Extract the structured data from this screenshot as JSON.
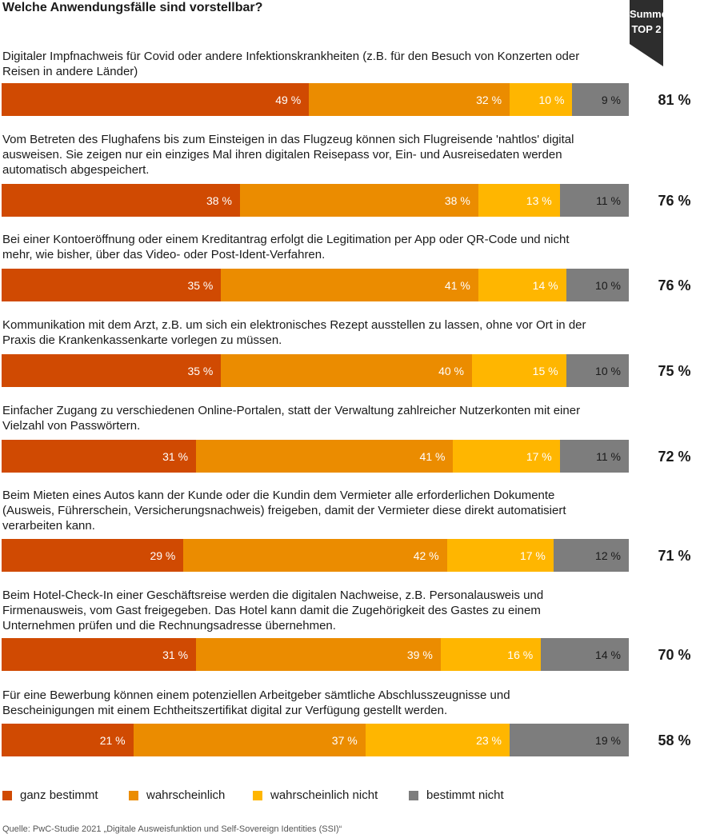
{
  "title": "Welche Anwendungsfälle sind vorstellbar?",
  "badge": {
    "line1": "Summe",
    "line2": "TOP 2"
  },
  "colors": {
    "ganz_bestimmt": "#d04a02",
    "wahrscheinlich": "#eb8c00",
    "wahrscheinlich_nicht": "#ffb600",
    "bestimmt_nicht": "#7d7d7d",
    "badge": "#2d2d2d"
  },
  "chart_data": {
    "type": "bar",
    "orientation": "horizontal-stacked",
    "title": "Welche Anwendungsfälle sind vorstellbar?",
    "series_names": [
      "ganz bestimmt",
      "wahrscheinlich",
      "wahrscheinlich nicht",
      "bestimmt nicht"
    ],
    "unit": "%",
    "rows": [
      {
        "label": "Digitaler Impfnachweis für Covid oder andere Infektionskrankheiten (z.B. für den Besuch von Konzerten oder Reisen in andere Länder)",
        "values": [
          49,
          32,
          10,
          9
        ],
        "value_labels": [
          "49 %",
          "32 %",
          "10 %",
          "9 %"
        ],
        "total": "81 %"
      },
      {
        "label": "Vom Betreten des Flughafens bis zum Einsteigen in das Flugzeug können sich Flugreisende 'nahtlos' digital ausweisen. Sie zeigen nur ein einziges Mal ihren digitalen Reisepass vor, Ein- und Ausreisedaten werden automatisch abgespeichert.",
        "values": [
          38,
          38,
          13,
          11
        ],
        "value_labels": [
          "38 %",
          "38 %",
          "13 %",
          "11 %"
        ],
        "total": "76 %"
      },
      {
        "label": "Bei einer Kontoeröffnung oder einem Kreditantrag erfolgt die Legitimation per App oder QR-Code und nicht mehr, wie bisher, über das Video- oder Post-Ident-Verfahren.",
        "values": [
          35,
          41,
          14,
          10
        ],
        "value_labels": [
          "35 %",
          "41 %",
          "14 %",
          "10 %"
        ],
        "total": "76 %"
      },
      {
        "label": "Kommunikation mit dem Arzt, z.B. um sich ein elektronisches Rezept ausstellen zu lassen, ohne vor Ort in der Praxis die Krankenkassenkarte vorlegen zu müssen.",
        "values": [
          35,
          40,
          15,
          10
        ],
        "value_labels": [
          "35 %",
          "40 %",
          "15 %",
          "10 %"
        ],
        "total": "75 %"
      },
      {
        "label": "Einfacher Zugang zu verschiedenen Online-Portalen, statt der Verwaltung zahlreicher Nutzerkonten mit einer Vielzahl von Passwörtern.",
        "values": [
          31,
          41,
          17,
          11
        ],
        "value_labels": [
          "31 %",
          "41 %",
          "17 %",
          "11 %"
        ],
        "total": "72 %"
      },
      {
        "label": "Beim Mieten eines Autos kann der Kunde oder die Kundin dem Vermieter alle erforderlichen Dokumente (Ausweis, Führerschein, Versicherungsnachweis) freigeben, damit der Vermieter diese direkt automatisiert verarbeiten kann.",
        "values": [
          29,
          42,
          17,
          12
        ],
        "value_labels": [
          "29 %",
          "42 %",
          "17 %",
          "12 %"
        ],
        "total": "71 %"
      },
      {
        "label": "Beim Hotel-Check-In einer Geschäftsreise werden die digitalen Nachweise, z.B. Personalausweis und Firmenausweis, vom Gast freigegeben. Das Hotel kann damit die Zugehörigkeit des Gastes zu einem Unternehmen prüfen und die Rechnungsadresse übernehmen.",
        "values": [
          31,
          39,
          16,
          14
        ],
        "value_labels": [
          "31 %",
          "39 %",
          "16 %",
          "14 %"
        ],
        "total": "70 %"
      },
      {
        "label": "Für eine Bewerbung können einem potenziellen Arbeitgeber sämtliche Abschlusszeugnisse und Bescheinigungen mit einem Echtheitszertifikat digital zur Verfügung gestellt werden.",
        "values": [
          21,
          37,
          23,
          19
        ],
        "value_labels": [
          "21 %",
          "37 %",
          "23 %",
          "19 %"
        ],
        "total": "58 %"
      }
    ],
    "legend": {
      "placement": "bottom",
      "items": [
        "ganz bestimmt",
        "wahrscheinlich",
        "wahrscheinlich nicht",
        "bestimmt nicht"
      ]
    }
  },
  "source": "Quelle: PwC-Studie 2021 „Digitale Ausweisfunktion und Self-Sovereign Identities (SSI)“"
}
